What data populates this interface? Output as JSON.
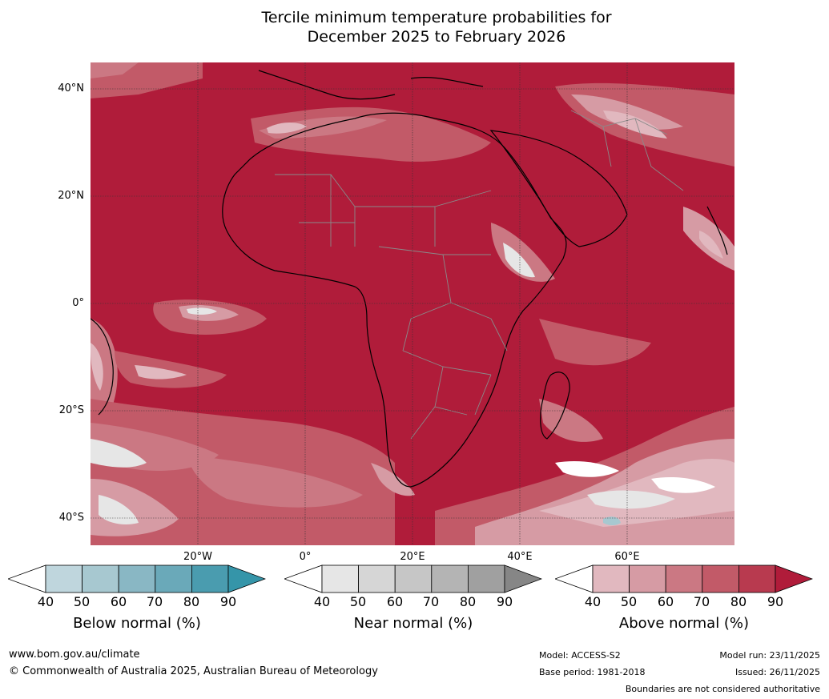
{
  "title": {
    "line1": "Tercile minimum temperature probabilities for",
    "line2": "December 2025 to February 2026"
  },
  "axes": {
    "lat_labels": [
      "40°N",
      "20°N",
      "0°",
      "20°S",
      "40°S"
    ],
    "lon_labels": [
      "20°W",
      "0°",
      "20°E",
      "40°E",
      "60°E"
    ]
  },
  "legends": [
    {
      "title": "Below normal (%)",
      "ticks": [
        "40",
        "50",
        "60",
        "70",
        "80",
        "90"
      ],
      "colors": [
        "#ffffff",
        "#bfd6dd",
        "#a7c8d0",
        "#89b7c4",
        "#6aa9b9",
        "#4a9caf",
        "#3595a9"
      ]
    },
    {
      "title": "Near normal (%)",
      "ticks": [
        "40",
        "50",
        "60",
        "70",
        "80",
        "90"
      ],
      "colors": [
        "#ffffff",
        "#e6e6e6",
        "#d6d6d6",
        "#c6c6c6",
        "#b4b4b4",
        "#a0a0a0",
        "#868686"
      ]
    },
    {
      "title": "Above normal (%)",
      "ticks": [
        "40",
        "50",
        "60",
        "70",
        "80",
        "90"
      ],
      "colors": [
        "#ffffff",
        "#e1b8bf",
        "#d69ba4",
        "#cb7883",
        "#c25a68",
        "#b83a4f",
        "#b01c3a"
      ]
    }
  ],
  "footer": {
    "url": "www.bom.gov.au/climate",
    "copyright": "© Commonwealth of Australia 2025, Australian Bureau of Meteorology",
    "model": "Model: ACCESS-S2",
    "base_period": "Base period: 1981-2018",
    "model_run": "Model run: 23/11/2025",
    "issued": "Issued: 26/11/2025",
    "disclaimer": "Boundaries are not considered authoritative"
  }
}
